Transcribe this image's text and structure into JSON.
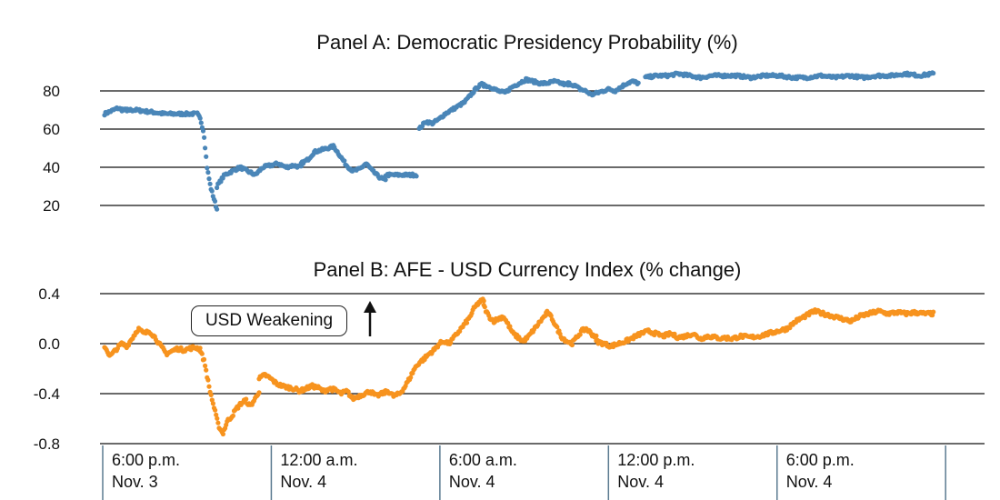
{
  "chart_data": [
    {
      "type": "scatter",
      "title": "Panel A:  Democratic Presidency Probability (%)",
      "xlabel": "",
      "ylabel": "",
      "xlim": [
        0,
        59.6
      ],
      "ylim": [
        15,
        92
      ],
      "y_ticks": [
        "80",
        "60",
        "40",
        "20"
      ],
      "y_tick_values": [
        80,
        60,
        40,
        20
      ],
      "grid": true,
      "color": "#4a86b8",
      "series": [
        {
          "name": "Democratic Presidency Probability",
          "segments": [
            {
              "x_start": 0.0,
              "x_end": 1.6,
              "values": [
                68,
                69,
                70,
                71,
                70,
                70
              ]
            },
            {
              "x_start": 1.2,
              "x_end": 6.4,
              "values": [
                70,
                70,
                69,
                68,
                68,
                68
              ]
            },
            {
              "x_start": 6.6,
              "x_end": 8.0,
              "values": [
                68,
                65,
                58,
                40,
                30,
                24,
                18
              ]
            },
            {
              "x_start": 8.0,
              "x_end": 14.0,
              "values": [
                30,
                36,
                38,
                40,
                38,
                36,
                40,
                41,
                42,
                40,
                41,
                40
              ]
            },
            {
              "x_start": 14.0,
              "x_end": 20.0,
              "values": [
                42,
                44,
                48,
                49,
                50,
                51,
                46,
                41,
                38,
                39,
                42,
                38,
                35,
                33
              ]
            },
            {
              "x_start": 20.0,
              "x_end": 22.2,
              "values": [
                36,
                36,
                36,
                36,
                36
              ]
            },
            {
              "x_start": 22.4,
              "x_end": 27.0,
              "values": [
                60,
                64,
                63,
                65,
                68,
                70,
                72,
                74,
                78,
                82,
                84
              ]
            },
            {
              "x_start": 27.0,
              "x_end": 33.0,
              "values": [
                83,
                82,
                80,
                79,
                82,
                84,
                86,
                85,
                84,
                84,
                85,
                84,
                83
              ]
            },
            {
              "x_start": 33.0,
              "x_end": 38.0,
              "values": [
                84,
                83,
                81,
                80,
                78,
                79,
                80,
                81,
                80,
                82,
                84,
                85,
                84
              ]
            },
            {
              "x_start": 38.5,
              "x_end": 44.0,
              "values": [
                87,
                88,
                88,
                89,
                88,
                87,
                88,
                88
              ]
            },
            {
              "x_start": 44.0,
              "x_end": 59.0,
              "values": [
                88,
                88,
                87,
                88,
                88,
                87,
                87,
                88,
                87,
                88,
                87,
                88,
                88,
                89,
                88,
                89
              ]
            }
          ]
        }
      ]
    },
    {
      "type": "scatter",
      "title": "Panel B:  AFE - USD Currency Index (% change)",
      "xlabel": "",
      "ylabel": "",
      "xlim": [
        0,
        59.6
      ],
      "ylim": [
        -0.8,
        0.4
      ],
      "y_ticks": [
        "0.4",
        "0.0",
        "-0.4",
        "-0.8"
      ],
      "y_tick_values": [
        0.4,
        0.0,
        -0.4,
        -0.8
      ],
      "grid": true,
      "color": "#f7931e",
      "annotation": "USD Weakening",
      "series": [
        {
          "name": "AFE - USD Currency Index",
          "segments": [
            {
              "x_start": 0.0,
              "x_end": 6.8,
              "values": [
                -0.02,
                -0.1,
                -0.05,
                0.0,
                -0.02,
                0.05,
                0.12,
                0.08,
                0.1,
                0.05,
                -0.02,
                -0.08,
                -0.06,
                -0.04,
                -0.05,
                -0.04,
                -0.03,
                -0.04
              ]
            },
            {
              "x_start": 6.8,
              "x_end": 11.0,
              "values": [
                -0.05,
                -0.15,
                -0.35,
                -0.5,
                -0.65,
                -0.72,
                -0.62,
                -0.58,
                -0.52,
                -0.48,
                -0.45,
                -0.5,
                -0.45,
                -0.38
              ]
            },
            {
              "x_start": 11.0,
              "x_end": 21.0,
              "values": [
                -0.28,
                -0.25,
                -0.28,
                -0.32,
                -0.34,
                -0.35,
                -0.36,
                -0.38,
                -0.36,
                -0.34,
                -0.35,
                -0.38,
                -0.36,
                -0.37,
                -0.4,
                -0.38,
                -0.44,
                -0.42,
                -0.4,
                -0.38,
                -0.42,
                -0.4,
                -0.38,
                -0.42,
                -0.4
              ]
            },
            {
              "x_start": 21.0,
              "x_end": 27.0,
              "values": [
                -0.4,
                -0.35,
                -0.28,
                -0.2,
                -0.15,
                -0.12,
                -0.08,
                -0.05,
                0.0,
                0.02,
                0.0,
                0.05,
                0.1,
                0.15,
                0.2,
                0.28,
                0.33,
                0.35
              ]
            },
            {
              "x_start": 27.0,
              "x_end": 35.0,
              "values": [
                0.3,
                0.22,
                0.18,
                0.2,
                0.22,
                0.15,
                0.08,
                0.05,
                0.02,
                0.05,
                0.1,
                0.15,
                0.2,
                0.25,
                0.2,
                0.12,
                0.05,
                0.02,
                0.0,
                0.05,
                0.1,
                0.12,
                0.08,
                0.05
              ]
            },
            {
              "x_start": 35.0,
              "x_end": 44.0,
              "values": [
                0.02,
                0.0,
                -0.02,
                0.0,
                0.02,
                0.05,
                0.08,
                0.1,
                0.08,
                0.06,
                0.08,
                0.05,
                0.06,
                0.08,
                0.04,
                0.06,
                0.05,
                0.04
              ]
            },
            {
              "x_start": 44.0,
              "x_end": 59.0,
              "values": [
                0.05,
                0.04,
                0.06,
                0.05,
                0.06,
                0.08,
                0.1,
                0.12,
                0.18,
                0.22,
                0.26,
                0.24,
                0.22,
                0.2,
                0.18,
                0.22,
                0.24,
                0.26,
                0.24,
                0.25,
                0.24,
                0.25,
                0.24,
                0.24
              ]
            }
          ]
        }
      ]
    }
  ],
  "x_axis": {
    "ticks": [
      {
        "x": 0.0,
        "time": "6:00 p.m.",
        "date": "Nov. 3"
      },
      {
        "x": 12.0,
        "time": "12:00 a.m.",
        "date": "Nov. 4"
      },
      {
        "x": 24.0,
        "time": "6:00 a.m.",
        "date": "Nov. 4"
      },
      {
        "x": 36.0,
        "time": "12:00 p.m.",
        "date": "Nov. 4"
      },
      {
        "x": 48.0,
        "time": "6:00 p.m.",
        "date": "Nov. 4"
      },
      {
        "x": 60.0,
        "time": "",
        "date": ""
      }
    ]
  },
  "annotation": {
    "label": "USD Weakening",
    "arrow": "up"
  }
}
